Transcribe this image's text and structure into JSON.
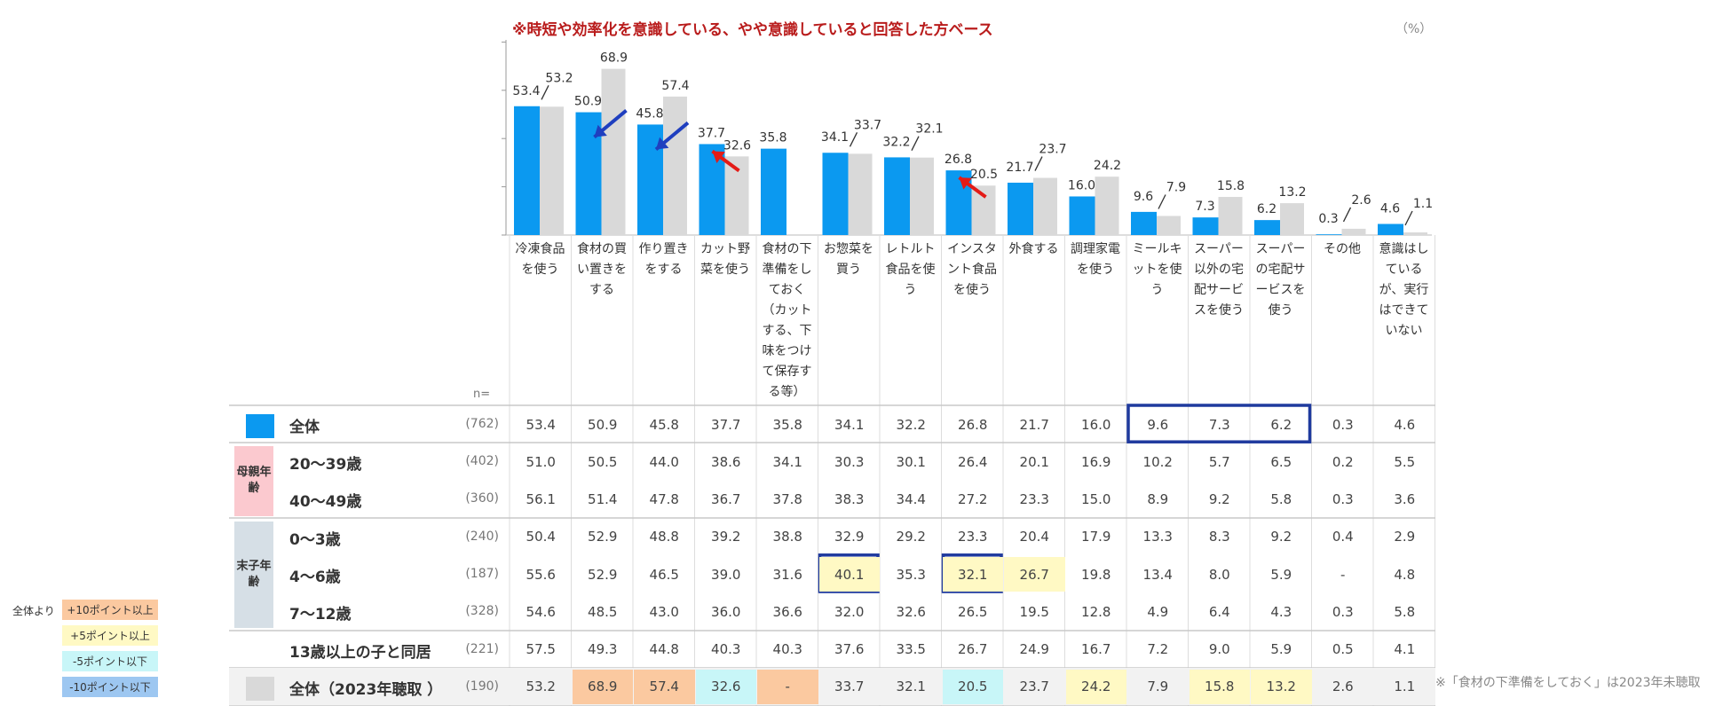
{
  "chart_data": {
    "type": "bar",
    "title": "※時短や効率化を意識している、やや意識していると回答した方ベース",
    "unit_label": "（%）",
    "categories": [
      "冷凍食品を使う",
      "食材の買い置きをする",
      "作り置きをする",
      "カット野菜を使う",
      "食材の下準備をしておく（カットする、下味をつけて保存する等）",
      "お惣菜を買う",
      "レトルト食品を使う",
      "インスタント食品を使う",
      "外食する",
      "調理家電を使う",
      "ミールキットを使う",
      "スーパー以外の宅配サービスを使う",
      "スーパーの宅配サービスを使う",
      "その他",
      "意識はしているが、実行はできていない"
    ],
    "series": [
      {
        "name": "全体",
        "color": "#0b99f0",
        "values": [
          53.4,
          50.9,
          45.8,
          37.7,
          35.8,
          34.1,
          32.2,
          26.8,
          21.7,
          16.0,
          9.6,
          7.3,
          6.2,
          0.3,
          4.6
        ]
      },
      {
        "name": "全体（2023年聴取 ）",
        "color": "#d9d9d9",
        "values": [
          53.2,
          68.9,
          57.4,
          32.6,
          null,
          33.7,
          32.1,
          20.5,
          23.7,
          24.2,
          7.9,
          15.8,
          13.2,
          2.6,
          1.1
        ]
      }
    ],
    "value_labels_series1": [
      "53.4",
      "50.9",
      "45.8",
      "37.7",
      "35.8",
      "34.1",
      "32.2",
      "26.8",
      "21.7",
      "16.0",
      "9.6",
      "7.3",
      "6.2",
      "0.3",
      "4.6"
    ],
    "value_labels_series2": [
      "53.2",
      "68.9",
      "57.4",
      "32.6",
      "",
      "33.7",
      "32.1",
      "20.5",
      "23.7",
      "24.2",
      "7.9",
      "15.8",
      "13.2",
      "2.6",
      "1.1"
    ],
    "ylim": [
      0,
      80
    ],
    "arrows": [
      {
        "category_index": 1,
        "direction": "down",
        "color": "#1f3fbf"
      },
      {
        "category_index": 2,
        "direction": "down",
        "color": "#1f3fbf"
      },
      {
        "category_index": 3,
        "direction": "up",
        "color": "#e41b17"
      },
      {
        "category_index": 7,
        "direction": "up",
        "color": "#e41b17"
      }
    ]
  },
  "table": {
    "n_header": "n=",
    "rows": [
      {
        "label": "全体",
        "n": "(762)",
        "swatch": "#0b99f0",
        "values": [
          "53.4",
          "50.9",
          "45.8",
          "37.7",
          "35.8",
          "34.1",
          "32.2",
          "26.8",
          "21.7",
          "16.0",
          "9.6",
          "7.3",
          "6.2",
          "0.3",
          "4.6"
        ],
        "fills": [
          "",
          "",
          "",
          "",
          "",
          "",
          "",
          "",
          "",
          "",
          "",
          "",
          "",
          "",
          ""
        ]
      },
      {
        "label": "20〜39歳",
        "n": "(402)",
        "values": [
          "51.0",
          "50.5",
          "44.0",
          "38.6",
          "34.1",
          "30.3",
          "30.1",
          "26.4",
          "20.1",
          "16.9",
          "10.2",
          "5.7",
          "6.5",
          "0.2",
          "5.5"
        ],
        "fills": [
          "",
          "",
          "",
          "",
          "",
          "",
          "",
          "",
          "",
          "",
          "",
          "",
          "",
          "",
          ""
        ]
      },
      {
        "label": "40〜49歳",
        "n": "(360)",
        "values": [
          "56.1",
          "51.4",
          "47.8",
          "36.7",
          "37.8",
          "38.3",
          "34.4",
          "27.2",
          "23.3",
          "15.0",
          "8.9",
          "9.2",
          "5.8",
          "0.3",
          "3.6"
        ],
        "fills": [
          "",
          "",
          "",
          "",
          "",
          "",
          "",
          "",
          "",
          "",
          "",
          "",
          "",
          "",
          ""
        ]
      },
      {
        "label": "0〜3歳",
        "n": "(240)",
        "values": [
          "50.4",
          "52.9",
          "48.8",
          "39.2",
          "38.8",
          "32.9",
          "29.2",
          "23.3",
          "20.4",
          "17.9",
          "13.3",
          "8.3",
          "9.2",
          "0.4",
          "2.9"
        ],
        "fills": [
          "",
          "",
          "",
          "",
          "",
          "",
          "",
          "",
          "",
          "",
          "",
          "",
          "",
          "",
          ""
        ]
      },
      {
        "label": "4〜6歳",
        "n": "(187)",
        "values": [
          "55.6",
          "52.9",
          "46.5",
          "39.0",
          "31.6",
          "40.1",
          "35.3",
          "32.1",
          "26.7",
          "19.8",
          "13.4",
          "8.0",
          "5.9",
          "-",
          "4.8"
        ],
        "fills": [
          "",
          "",
          "",
          "",
          "",
          "#fff9c4",
          "",
          "#fff9c4",
          "#fff9c4",
          "",
          "",
          "",
          "",
          "",
          ""
        ]
      },
      {
        "label": "7〜12歳",
        "n": "(328)",
        "values": [
          "54.6",
          "48.5",
          "43.0",
          "36.0",
          "36.6",
          "32.0",
          "32.6",
          "26.5",
          "19.5",
          "12.8",
          "4.9",
          "6.4",
          "4.3",
          "0.3",
          "5.8"
        ],
        "fills": [
          "",
          "",
          "",
          "",
          "",
          "",
          "",
          "",
          "",
          "",
          "",
          "",
          "",
          "",
          ""
        ]
      },
      {
        "label": "13歳以上の子と同居",
        "n": "(221)",
        "values": [
          "57.5",
          "49.3",
          "44.8",
          "40.3",
          "40.3",
          "37.6",
          "33.5",
          "26.7",
          "24.9",
          "16.7",
          "7.2",
          "9.0",
          "5.9",
          "0.5",
          "4.1"
        ],
        "fills": [
          "",
          "",
          "",
          "",
          "",
          "",
          "",
          "",
          "",
          "",
          "",
          "",
          "",
          "",
          ""
        ]
      },
      {
        "label": "全体（2023年聴取 ）",
        "n": "(190)",
        "swatch": "#d9d9d9",
        "values": [
          "53.2",
          "68.9",
          "57.4",
          "32.6",
          "-",
          "33.7",
          "32.1",
          "20.5",
          "23.7",
          "24.2",
          "7.9",
          "15.8",
          "13.2",
          "2.6",
          "1.1"
        ],
        "fills": [
          "",
          "#fbc9a0",
          "#fbc9a0",
          "#c8f6f8",
          "#fbc9a0",
          "",
          "",
          "#c8f6f8",
          "",
          "#fff9c4",
          "",
          "#fff9c4",
          "#fff9c4",
          "",
          ""
        ]
      }
    ],
    "groups": [
      {
        "label": "母親年齢",
        "color": "#fbc9cf"
      },
      {
        "label": "末子年齢",
        "color": "#d6dfe6"
      }
    ],
    "highlights": [
      {
        "row": 0,
        "from": 10,
        "to": 12
      },
      {
        "row": 4,
        "from": 5,
        "to": 5
      },
      {
        "row": 4,
        "from": 7,
        "to": 7
      }
    ]
  },
  "legend": {
    "prefix": "全体より",
    "items": [
      {
        "label": "+10ポイント以上",
        "color": "#fbc9a0"
      },
      {
        "label": "+5ポイント以上",
        "color": "#fff9c4"
      },
      {
        "label": "-5ポイント以下",
        "color": "#c8f6f8"
      },
      {
        "label": "-10ポイント以下",
        "color": "#9dc7f1"
      }
    ]
  },
  "footnote": "※「食材の下準備をしておく」は2023年未聴取"
}
